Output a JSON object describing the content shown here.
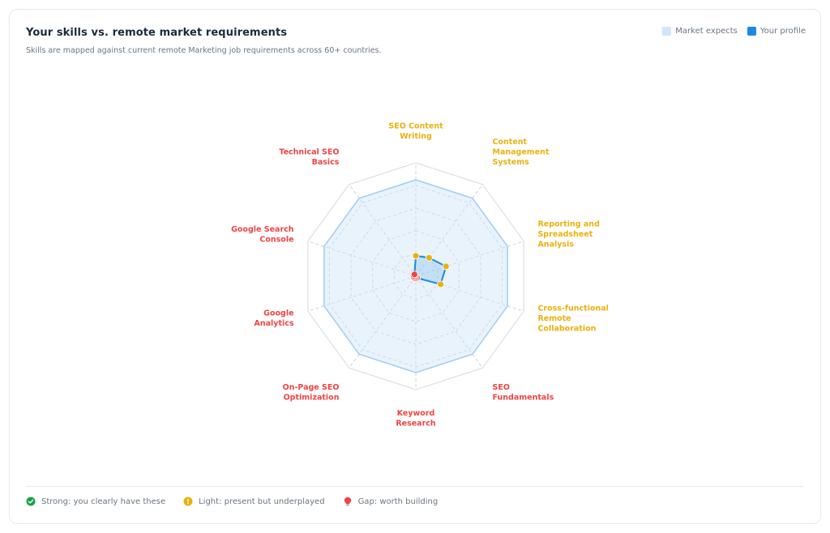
{
  "header": {
    "title": "Your skills vs. remote market requirements",
    "subtitle": "Skills are mapped against current remote Marketing job requirements across 60+ countries."
  },
  "legend": {
    "market_label": "Market expects",
    "profile_label": "Your profile",
    "market_color": "#cfe5f9",
    "profile_color": "#1e88e5"
  },
  "chart_data": {
    "type": "radar",
    "max": 1.0,
    "grid_levels": 5,
    "axes": [
      {
        "label": [
          "SEO Content",
          "Writing"
        ],
        "status": "light"
      },
      {
        "label": [
          "Content",
          "Management",
          "Systems"
        ],
        "status": "light"
      },
      {
        "label": [
          "Reporting and",
          "Spreadsheet",
          "Analysis"
        ],
        "status": "light"
      },
      {
        "label": [
          "Cross-functional",
          "Remote",
          "Collaboration"
        ],
        "status": "light"
      },
      {
        "label": [
          "SEO",
          "Fundamentals"
        ],
        "status": "gap"
      },
      {
        "label": [
          "Keyword",
          "Research"
        ],
        "status": "gap"
      },
      {
        "label": [
          "On-Page SEO",
          "Optimization"
        ],
        "status": "gap"
      },
      {
        "label": [
          "Google",
          "Analytics"
        ],
        "status": "gap"
      },
      {
        "label": [
          "Google Search",
          "Console"
        ],
        "status": "gap"
      },
      {
        "label": [
          "Technical SEO",
          "Basics"
        ],
        "status": "gap"
      }
    ],
    "series": [
      {
        "name": "Market expects",
        "values": [
          0.85,
          0.85,
          0.85,
          0.85,
          0.85,
          0.85,
          0.85,
          0.85,
          0.85,
          0.85
        ]
      },
      {
        "name": "Your profile",
        "values": [
          0.18,
          0.2,
          0.28,
          0.23,
          0.02,
          0.02,
          0.02,
          0.02,
          0.02,
          0.02
        ]
      }
    ],
    "status_colors": {
      "strong": "#16a34a",
      "light": "#e9b20e",
      "gap": "#ef4444"
    }
  },
  "footer": {
    "strong_label": "Strong: you clearly have these",
    "light_label": "Light: present but underplayed",
    "gap_label": "Gap: worth building",
    "strong_color": "#16a34a",
    "light_color": "#e9b20e",
    "gap_color": "#ef4444"
  }
}
